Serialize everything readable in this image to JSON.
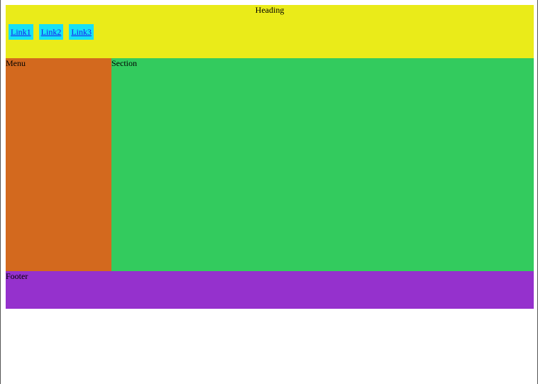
{
  "header": {
    "heading": "Heading",
    "links": [
      "Link1",
      "Link2",
      "Link3"
    ]
  },
  "menu": {
    "label": "Menu"
  },
  "section": {
    "label": "Section"
  },
  "footer": {
    "label": "Footer"
  },
  "colors": {
    "header_bg": "#eaeb19",
    "link_bg": "#17e0f7",
    "link_text": "#1a1aee",
    "menu_bg": "#d3691e",
    "section_bg": "#33cb5e",
    "footer_bg": "#9531cd"
  }
}
